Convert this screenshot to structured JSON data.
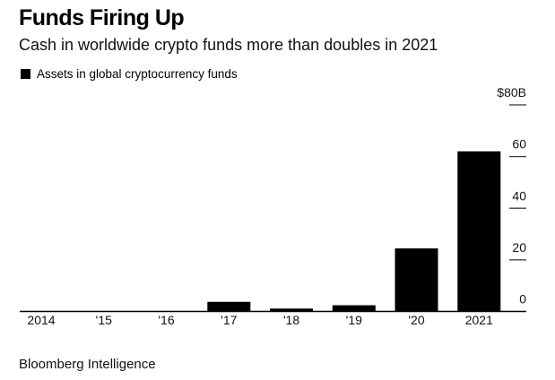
{
  "header": {
    "title": "Funds Firing Up",
    "subtitle": "Cash in worldwide crypto funds more than doubles in 2021"
  },
  "footer": {
    "source": "Bloomberg Intelligence"
  },
  "chart_data": {
    "type": "bar",
    "title": "Funds Firing Up",
    "subtitle": "Cash in worldwide crypto funds more than doubles in 2021",
    "categories": [
      "2014",
      "'15",
      "'16",
      "'17",
      "'18",
      "'19",
      "'20",
      "2021"
    ],
    "series": [
      {
        "name": "Assets in global cryptocurrency funds",
        "color": "#000000",
        "values": [
          0.1,
          0.1,
          0.1,
          3.7,
          1.1,
          2.4,
          24.4,
          62
        ]
      }
    ],
    "xlabel": "",
    "ylabel": "",
    "ylim": [
      0,
      80
    ],
    "yticks": [
      0,
      20,
      40,
      60,
      80
    ],
    "ytick_labels": [
      "0",
      "20",
      "40",
      "60",
      "$80B"
    ],
    "y_axis_side": "right",
    "grid": false,
    "legend": {
      "position": "top-left",
      "entries": [
        "Assets in global cryptocurrency funds"
      ]
    },
    "source": "Bloomberg Intelligence"
  }
}
